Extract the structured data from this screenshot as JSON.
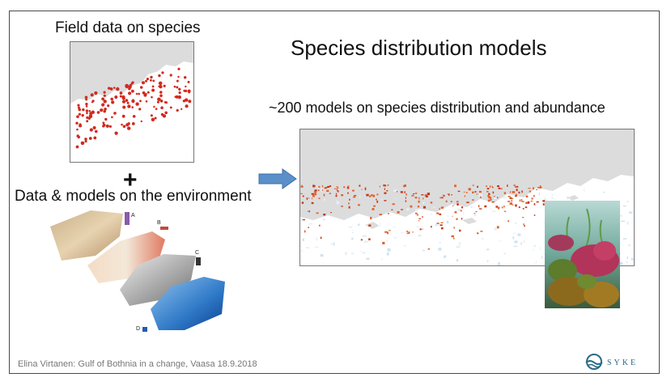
{
  "slide": {
    "title": "Species distribution models",
    "subtitle": "~200 models on species distribution and abundance",
    "field_label": "Field data on species",
    "plus_sign": "+",
    "env_label": "Data & models on the environment",
    "footer": "Elina Virtanen: Gulf of Bothnia in a change, Vaasa 18.9.2018",
    "env_panels": [
      "A",
      "B",
      "C",
      "D"
    ],
    "logo_text": "SYKE"
  },
  "colors": {
    "accent_arrow": "#5b8fc9",
    "points": "#d12a1f",
    "land": "#dcdcdc",
    "logo": "#2a6b86"
  }
}
